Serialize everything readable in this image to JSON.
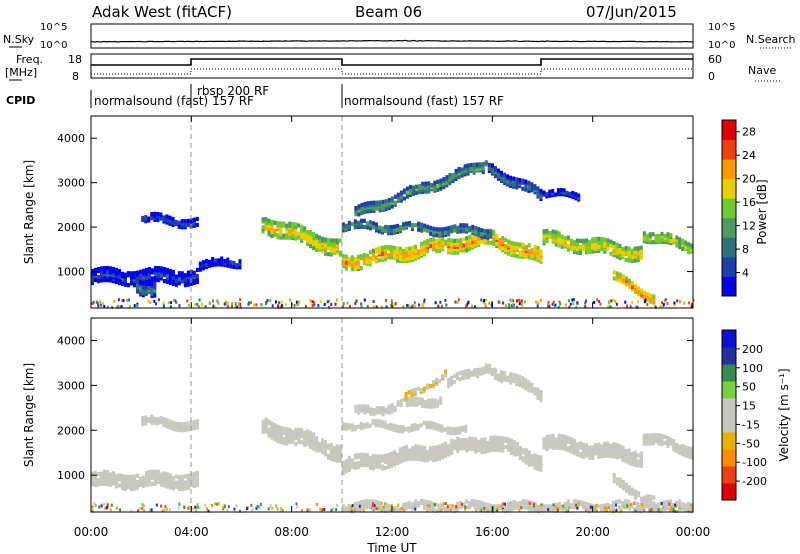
{
  "header": {
    "station": "Adak West (fitACF)",
    "beam": "Beam 06",
    "date": "07/Jun/2015"
  },
  "panels": {
    "nsky_label": "N.Sky",
    "nsky_ticks": [
      "10^5",
      "10^0"
    ],
    "nsearch_label": "N.Search",
    "nsearch_ticks": [
      "10^5",
      "10^0"
    ],
    "freq_label": "Freq.",
    "freq_unit": "[MHz]",
    "freq_ticks": [
      "18",
      "8"
    ],
    "nave_label": "Nave",
    "nave_ticks": [
      "60",
      "0"
    ],
    "cpid_label": "CPID",
    "cpid_segments": [
      {
        "label": "normalsound (fast) 157 RF",
        "start_hour": 0,
        "end_hour": 4
      },
      {
        "label": "rbsp 200 RF",
        "start_hour": 4,
        "end_hour": 10
      },
      {
        "label": "normalsound (fast) 157 RF",
        "start_hour": 10,
        "end_hour": 24
      }
    ]
  },
  "chart_data": [
    {
      "type": "heatmap",
      "title": "",
      "xlabel": "",
      "ylabel": "Slant Range [km]",
      "xlim": [
        0,
        24
      ],
      "ylim": [
        180,
        4500
      ],
      "yticks": [
        "1000",
        "2000",
        "3000",
        "4000"
      ],
      "colorbar": {
        "label": "Power [dB]",
        "ticks": [
          "4",
          "8",
          "12",
          "16",
          "20",
          "24",
          "28"
        ],
        "range": [
          0,
          30
        ],
        "colors": [
          "#0000ee",
          "#1f3fa8",
          "#2f6f80",
          "#4e9a5c",
          "#71c832",
          "#e8d000",
          "#ff9a00",
          "#f04010",
          "#dd0000"
        ]
      },
      "echo_bands": [
        {
          "start": 0.0,
          "end": 4.3,
          "ranges": [
            900,
            900
          ],
          "width": 320,
          "value": 6
        },
        {
          "start": 1.8,
          "end": 2.6,
          "ranges": [
            650,
            650
          ],
          "width": 300,
          "value": 10
        },
        {
          "start": 2.0,
          "end": 4.3,
          "ranges": [
            2200,
            2100
          ],
          "width": 160,
          "value": 6
        },
        {
          "start": 4.3,
          "end": 6.0,
          "ranges": [
            1150,
            1250
          ],
          "width": 200,
          "value": 5
        },
        {
          "start": 6.8,
          "end": 10.0,
          "ranges": [
            2100,
            1500
          ],
          "width": 340,
          "value": 20
        },
        {
          "start": 10.0,
          "end": 16.0,
          "ranges": [
            1200,
            1750
          ],
          "width": 300,
          "value": 22
        },
        {
          "start": 16.0,
          "end": 18.0,
          "ranges": [
            1750,
            1300
          ],
          "width": 300,
          "value": 22
        },
        {
          "start": 10.0,
          "end": 16.0,
          "ranges": [
            2050,
            1900
          ],
          "width": 180,
          "value": 12
        },
        {
          "start": 10.5,
          "end": 15.7,
          "ranges": [
            2300,
            3400
          ],
          "width": 230,
          "value": 12
        },
        {
          "start": 15.7,
          "end": 18.0,
          "ranges": [
            3400,
            2700
          ],
          "width": 230,
          "value": 10
        },
        {
          "start": 18.0,
          "end": 22.0,
          "ranges": [
            1750,
            1400
          ],
          "width": 300,
          "value": 20
        },
        {
          "start": 22.0,
          "end": 24.0,
          "ranges": [
            1850,
            1550
          ],
          "width": 220,
          "value": 18
        },
        {
          "start": 18.0,
          "end": 19.5,
          "ranges": [
            2800,
            2700
          ],
          "width": 150,
          "value": 6
        },
        {
          "start": 20.8,
          "end": 22.5,
          "ranges": [
            900,
            400
          ],
          "width": 170,
          "value": 24
        }
      ]
    },
    {
      "type": "heatmap",
      "title": "",
      "xlabel": "Time UT",
      "ylabel": "Slant Range [km]",
      "xlim": [
        0,
        24
      ],
      "ylim": [
        180,
        4500
      ],
      "xticks": [
        "00:00",
        "04:00",
        "08:00",
        "12:00",
        "16:00",
        "20:00",
        "00:00"
      ],
      "yticks": [
        "1000",
        "2000",
        "3000",
        "4000"
      ],
      "colorbar": {
        "label": "Velocity [m s⁻¹]",
        "ticks": [
          "200",
          "100",
          "50",
          "15",
          "-15",
          "-50",
          "-100",
          "-200"
        ],
        "range": [
          -250,
          250
        ],
        "colors": [
          "#dd0000",
          "#f04010",
          "#ff8c00",
          "#e8b000",
          "#c8c8c0",
          "#c8c8c0",
          "#7ad040",
          "#3a8a50",
          "#2030a0",
          "#1010d0"
        ]
      },
      "echo_bands": [
        {
          "start": 0.0,
          "end": 4.3,
          "ranges": [
            900,
            900
          ],
          "width": 320,
          "value": 0
        },
        {
          "start": 2.0,
          "end": 4.3,
          "ranges": [
            2200,
            2100
          ],
          "width": 160,
          "value": 0
        },
        {
          "start": 6.8,
          "end": 10.0,
          "ranges": [
            2100,
            1500
          ],
          "width": 340,
          "value": 0
        },
        {
          "start": 10.0,
          "end": 16.0,
          "ranges": [
            1200,
            1750
          ],
          "width": 300,
          "value": 0
        },
        {
          "start": 16.0,
          "end": 18.0,
          "ranges": [
            1750,
            1300
          ],
          "width": 300,
          "value": 0
        },
        {
          "start": 10.0,
          "end": 15.0,
          "ranges": [
            2150,
            2050
          ],
          "width": 150,
          "value": -40
        },
        {
          "start": 10.5,
          "end": 14.0,
          "ranges": [
            2400,
            2700
          ],
          "width": 180,
          "value": 0
        },
        {
          "start": 12.5,
          "end": 14.2,
          "ranges": [
            2700,
            3300
          ],
          "width": 150,
          "value": -50
        },
        {
          "start": 14.2,
          "end": 15.7,
          "ranges": [
            3050,
            3400
          ],
          "width": 200,
          "value": 0
        },
        {
          "start": 15.7,
          "end": 18.0,
          "ranges": [
            3450,
            2800
          ],
          "width": 230,
          "value": 30
        },
        {
          "start": 18.0,
          "end": 22.0,
          "ranges": [
            1750,
            1400
          ],
          "width": 300,
          "value": 0
        },
        {
          "start": 22.0,
          "end": 24.0,
          "ranges": [
            1850,
            1550
          ],
          "width": 220,
          "value": 0
        },
        {
          "start": 20.8,
          "end": 22.5,
          "ranges": [
            900,
            400
          ],
          "width": 170,
          "value": 0
        },
        {
          "start": 10.0,
          "end": 24.0,
          "ranges": [
            300,
            300
          ],
          "width": 160,
          "value": 30
        }
      ]
    }
  ]
}
